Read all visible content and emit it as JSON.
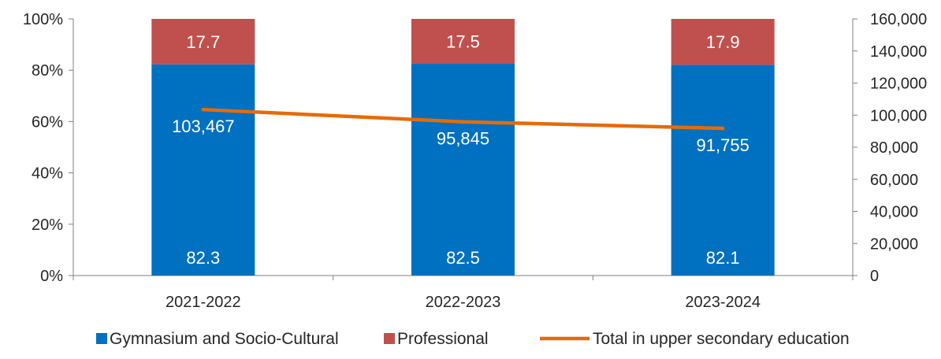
{
  "chart_data": {
    "type": "bar",
    "stacked": true,
    "categories": [
      "2021-2022",
      "2022-2023",
      "2023-2024"
    ],
    "series": [
      {
        "name": "Gymnasium and Socio-Cultural",
        "kind": "bar",
        "axis": "left",
        "color": "#0070C0",
        "values": [
          82.3,
          82.5,
          82.1
        ],
        "labels": [
          "82.3",
          "82.5",
          "82.1"
        ]
      },
      {
        "name": "Professional",
        "kind": "bar",
        "axis": "left",
        "color": "#C0504D",
        "values": [
          17.7,
          17.5,
          17.9
        ],
        "labels": [
          "17.7",
          "17.5",
          "17.9"
        ]
      },
      {
        "name": "Total in upper secondary education",
        "kind": "line",
        "axis": "right",
        "color": "#E36C09",
        "values": [
          103467,
          95845,
          91755
        ],
        "labels": [
          "103,467",
          "95,845",
          "91,755"
        ]
      }
    ],
    "y_left": {
      "ylim": [
        0,
        100
      ],
      "ticks": [
        0,
        20,
        40,
        60,
        80,
        100
      ],
      "tick_labels": [
        "0%",
        "20%",
        "40%",
        "60%",
        "80%",
        "100%"
      ]
    },
    "y_right": {
      "ylim": [
        0,
        160000
      ],
      "ticks": [
        0,
        20000,
        40000,
        60000,
        80000,
        100000,
        120000,
        140000,
        160000
      ],
      "tick_labels": [
        "0",
        "20,000",
        "40,000",
        "60,000",
        "80,000",
        "100,000",
        "120,000",
        "140,000",
        "160,000"
      ]
    },
    "grid": false,
    "legend": "bottom"
  }
}
